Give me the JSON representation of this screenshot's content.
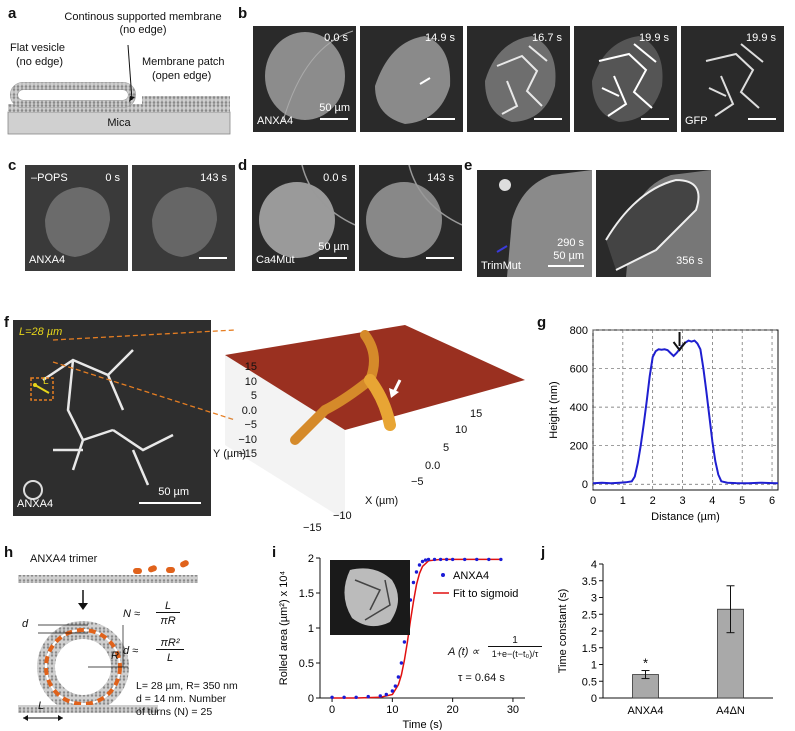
{
  "panels": {
    "a": "a",
    "b": "b",
    "c": "c",
    "d": "d",
    "e": "e",
    "f": "f",
    "g": "g",
    "h": "h",
    "i": "i",
    "j": "j"
  },
  "panel_a": {
    "top_label": "Continous supported membrane",
    "top_sub": "(no edge)",
    "flat_vesicle": "Flat vesicle",
    "flat_vesicle_sub": "(no edge)",
    "patch": "Membrane patch",
    "patch_sub": "(open edge)",
    "substrate": "Mica"
  },
  "panel_b": {
    "frames": [
      {
        "time": "0.0 s",
        "label": "ANXA4",
        "scale": "50 µm"
      },
      {
        "time": "14.9 s",
        "label": "",
        "scale": ""
      },
      {
        "time": "16.7 s",
        "label": "",
        "scale": ""
      },
      {
        "time": "19.9 s",
        "label": "",
        "scale": ""
      },
      {
        "time": "19.9 s",
        "label": "GFP",
        "scale": ""
      }
    ]
  },
  "panel_c": {
    "condition": "–POPS",
    "label": "ANXA4",
    "times": [
      "0 s",
      "143 s"
    ]
  },
  "panel_d": {
    "label": "Ca4Mut",
    "times": [
      "0.0 s",
      "143 s"
    ],
    "scale": "50 µm"
  },
  "panel_e": {
    "label": "TrimMut",
    "times": [
      "290 s",
      "356 s"
    ],
    "scale": "50 µm"
  },
  "panel_f": {
    "length_label": "L=28 µm",
    "L": "L",
    "label": "ANXA4",
    "scale": "50 µm",
    "y_axis": "Y (µm)",
    "x_axis": "X (µm)",
    "y_ticks": [
      "15",
      "10",
      "5",
      "0.0",
      "−5",
      "−10",
      "−15"
    ],
    "x_ticks": [
      "15",
      "10",
      "5",
      "0.0",
      "−5",
      "−10",
      "−15"
    ]
  },
  "panel_h": {
    "title": "ANXA4 trimer",
    "eq_N_lhs": "N ≈",
    "eq_N_num": "L",
    "eq_N_den": "πR",
    "eq_d_lhs": "d ≈",
    "eq_d_num": "πR²",
    "eq_d_den": "L",
    "d": "d",
    "R": "R",
    "L": "L",
    "params_1": "L= 28 µm, R= 350 nm",
    "params_2": "d = 14 nm. Number",
    "params_3": "of turns (N) = 25"
  },
  "panel_i": {
    "formula_lhs": "A (t) ∝",
    "formula_num": "1",
    "formula_den": "1+e−(t−t₀)/τ",
    "tau": "τ = 0.64 s"
  },
  "chart_data": [
    {
      "type": "line",
      "panel": "g",
      "xlabel": "Distance (µm)",
      "ylabel": "Height (nm)",
      "xlim": [
        0,
        6.2
      ],
      "ylim": [
        -30,
        800
      ],
      "xticks": [
        0,
        1,
        2,
        3,
        4,
        5,
        6
      ],
      "yticks": [
        0,
        200,
        400,
        600,
        800
      ],
      "grid": true,
      "line_color": "#1f1fd0",
      "series": [
        {
          "name": "",
          "x": [
            0,
            0.3,
            0.6,
            0.9,
            1.1,
            1.3,
            1.4,
            1.5,
            1.6,
            1.7,
            1.8,
            1.9,
            2.0,
            2.1,
            2.2,
            2.3,
            2.4,
            2.5,
            2.6,
            2.7,
            2.8,
            2.9,
            3.0,
            3.1,
            3.2,
            3.3,
            3.4,
            3.5,
            3.6,
            3.7,
            3.8,
            3.9,
            4.0,
            4.1,
            4.2,
            4.3,
            4.5,
            4.8,
            5.2,
            5.6,
            6.0,
            6.2
          ],
          "y": [
            5,
            8,
            5,
            8,
            10,
            15,
            40,
            110,
            200,
            310,
            430,
            560,
            660,
            690,
            700,
            698,
            700,
            695,
            680,
            665,
            680,
            700,
            720,
            735,
            745,
            740,
            745,
            730,
            700,
            600,
            480,
            350,
            220,
            120,
            50,
            15,
            8,
            6,
            5,
            8,
            6,
            5
          ]
        }
      ],
      "annotation": "arrow at x≈2.9"
    },
    {
      "type": "scatter",
      "panel": "i",
      "xlabel": "Time (s)",
      "ylabel": "Rolled area (µm²) x 10⁴",
      "xlim": [
        -2,
        32
      ],
      "ylim": [
        0,
        2
      ],
      "xticks": [
        0,
        10,
        20,
        30
      ],
      "yticks": [
        0,
        0.5,
        1,
        1.5,
        2
      ],
      "legend_position": "top-right",
      "series": [
        {
          "name": "ANXA4",
          "color": "#1b1bd6",
          "x": [
            0,
            2,
            4,
            6,
            8,
            9,
            10,
            10.5,
            11,
            11.5,
            12,
            12.5,
            13,
            13.5,
            14,
            14.5,
            15,
            15.5,
            16,
            17,
            18,
            19,
            20,
            22,
            24,
            26,
            28
          ],
          "y": [
            0.01,
            0.01,
            0.01,
            0.02,
            0.03,
            0.05,
            0.1,
            0.17,
            0.3,
            0.5,
            0.8,
            1.1,
            1.4,
            1.65,
            1.8,
            1.9,
            1.95,
            1.97,
            1.98,
            1.98,
            1.98,
            1.98,
            1.98,
            1.98,
            1.98,
            1.98,
            1.98
          ]
        },
        {
          "name": "Fit to sigmoid",
          "color": "#e01010",
          "x": [
            0,
            4,
            8,
            10,
            11,
            11.5,
            12,
            12.5,
            13,
            13.5,
            14,
            14.5,
            15,
            16,
            18,
            22,
            28
          ],
          "y": [
            0,
            0,
            0.01,
            0.05,
            0.19,
            0.33,
            0.54,
            0.8,
            1.1,
            1.38,
            1.62,
            1.78,
            1.88,
            1.96,
            1.98,
            1.98,
            1.98
          ]
        }
      ]
    },
    {
      "type": "bar",
      "panel": "j",
      "ylabel": "Time constant (s)",
      "ylim": [
        0,
        4
      ],
      "yticks": [
        0,
        0.5,
        1,
        1.5,
        2,
        2.5,
        3,
        3.5,
        4
      ],
      "categories": [
        "ANXA4",
        "A4ΔN"
      ],
      "values": [
        0.7,
        2.65
      ],
      "errors": [
        0.12,
        0.7
      ],
      "bar_color": "#a9a9a9",
      "annotations": [
        "*",
        ""
      ]
    }
  ]
}
